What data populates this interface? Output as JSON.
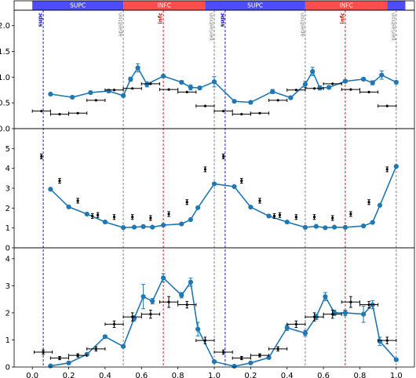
{
  "figure": {
    "x_ticks": [
      "0.0",
      "0.2",
      "0.4",
      "0.6",
      "0.8",
      "1.0",
      "0.2",
      "0.4",
      "0.6",
      "0.8",
      "1.0"
    ],
    "phase_bands": [
      {
        "label": "SUPC",
        "start": 0.0,
        "end": 0.5,
        "color": "#4d4dff"
      },
      {
        "label": "INFC",
        "start": 0.5,
        "end": 0.95,
        "color": "#ff4d4d"
      },
      {
        "label": "SUPC",
        "start": 0.95,
        "end": 1.5,
        "color": "#4d4dff"
      },
      {
        "label": "INFC",
        "start": 1.5,
        "end": 1.95,
        "color": "#ff4d4d"
      },
      {
        "label": "",
        "start": 1.95,
        "end": 2.05,
        "color": "#4d4dff"
      }
    ],
    "vertical_lines": [
      {
        "label": "supc",
        "x": 0.06,
        "color": "#0000cc",
        "text_color": "#0000cc"
      },
      {
        "label": "apastron",
        "x": 0.5,
        "color": "#777777",
        "text_color": "#777777"
      },
      {
        "label": "infc",
        "x": 0.72,
        "color": "#dd0000",
        "text_color": "#dd0000"
      },
      {
        "label": "periastron",
        "x": 1.0,
        "color": "#777777",
        "text_color": "#777777"
      },
      {
        "label": "supc",
        "x": 1.06,
        "color": "#0000cc",
        "text_color": "#0000cc"
      },
      {
        "label": "apastron",
        "x": 1.5,
        "color": "#777777",
        "text_color": "#777777"
      },
      {
        "label": "infc",
        "x": 1.72,
        "color": "#dd0000",
        "text_color": "#dd0000"
      },
      {
        "label": "periastron",
        "x": 2.0,
        "color": "#777777",
        "text_color": "#777777"
      }
    ],
    "colors": {
      "line": "#1f77b4",
      "black": "#000000"
    }
  },
  "chart_data": [
    {
      "type": "line",
      "panel": "top",
      "xlim": [
        -0.1,
        2.1
      ],
      "ylim": [
        0,
        2.3
      ],
      "y_ticks": [
        "0.0",
        "0.5",
        "1.0",
        "1.5",
        "2.0"
      ],
      "y_tick_values": [
        0,
        0.5,
        1.0,
        1.5,
        2.0
      ],
      "series": [
        {
          "style": "blue-line",
          "x": [
            0.1,
            0.22,
            0.32,
            0.42,
            0.5,
            0.54,
            0.58,
            0.63,
            0.72,
            0.82,
            0.87,
            0.92,
            1.0,
            1.11,
            1.2,
            1.32,
            1.42,
            1.5,
            1.54,
            1.58,
            1.63,
            1.72,
            1.82,
            1.87,
            1.92,
            2.0
          ],
          "y": [
            0.67,
            0.61,
            0.7,
            0.73,
            0.64,
            0.96,
            1.18,
            0.86,
            1.02,
            0.9,
            0.8,
            0.79,
            0.91,
            0.53,
            0.51,
            0.72,
            0.6,
            0.86,
            1.11,
            0.79,
            0.8,
            0.92,
            0.96,
            0.89,
            1.04,
            0.9
          ],
          "yerr": [
            0.02,
            0.02,
            0.03,
            0.03,
            0.03,
            0.04,
            0.08,
            0.05,
            0.03,
            0.03,
            0.05,
            0.03,
            0.1,
            0.02,
            0.02,
            0.04,
            0.03,
            0.06,
            0.08,
            0.04,
            0.03,
            0.03,
            0.03,
            0.04,
            0.08,
            0.03
          ]
        },
        {
          "style": "black-xerr",
          "x": [
            0.05,
            0.15,
            0.25,
            0.35,
            0.45,
            0.55,
            0.65,
            0.75,
            0.85,
            0.95,
            1.05,
            1.15,
            1.25,
            1.35,
            1.45,
            1.55,
            1.65,
            1.75,
            1.85,
            1.95
          ],
          "y": [
            0.34,
            0.28,
            0.3,
            0.55,
            0.75,
            0.78,
            0.87,
            0.76,
            0.71,
            0.44,
            0.34,
            0.28,
            0.3,
            0.55,
            0.75,
            0.78,
            0.87,
            0.76,
            0.71,
            0.44
          ],
          "xerr": [
            0.05,
            0.05,
            0.05,
            0.05,
            0.05,
            0.05,
            0.05,
            0.05,
            0.05,
            0.05,
            0.05,
            0.05,
            0.05,
            0.05,
            0.05,
            0.05,
            0.05,
            0.05,
            0.05,
            0.05
          ]
        }
      ]
    },
    {
      "type": "line",
      "panel": "middle",
      "xlim": [
        -0.1,
        2.1
      ],
      "ylim": [
        0,
        6
      ],
      "y_ticks": [
        "0",
        "1",
        "2",
        "3",
        "4",
        "5"
      ],
      "y_tick_values": [
        0,
        1,
        2,
        3,
        4,
        5
      ],
      "series": [
        {
          "style": "blue-line",
          "x": [
            0.1,
            0.2,
            0.3,
            0.4,
            0.5,
            0.56,
            0.61,
            0.66,
            0.72,
            0.82,
            0.87,
            0.91,
            1.0,
            1.11,
            1.2,
            1.3,
            1.4,
            1.5,
            1.56,
            1.61,
            1.66,
            1.72,
            1.82,
            1.87,
            1.91,
            2.0
          ],
          "y": [
            2.95,
            2.06,
            1.7,
            1.3,
            1.02,
            1.04,
            1.07,
            1.04,
            1.14,
            1.2,
            1.42,
            2.02,
            3.22,
            3.08,
            2.05,
            1.6,
            1.3,
            1.03,
            1.08,
            1.01,
            1.04,
            1.03,
            1.1,
            1.28,
            2.14,
            4.1
          ]
        },
        {
          "style": "black-yerr",
          "x": [
            0.05,
            0.15,
            0.25,
            0.33,
            0.36,
            0.45,
            0.55,
            0.65,
            0.75,
            0.85,
            0.95,
            1.05,
            1.15,
            1.25,
            1.33,
            1.36,
            1.45,
            1.55,
            1.65,
            1.75,
            1.85,
            1.95
          ],
          "y": [
            4.6,
            3.37,
            2.37,
            1.6,
            1.65,
            1.55,
            1.55,
            1.5,
            1.7,
            2.3,
            3.95,
            4.6,
            3.37,
            2.37,
            1.6,
            1.65,
            1.55,
            1.55,
            1.5,
            1.7,
            2.3,
            3.95
          ],
          "yerr": [
            0.12,
            0.12,
            0.12,
            0.12,
            0.12,
            0.12,
            0.12,
            0.12,
            0.12,
            0.12,
            0.12,
            0.12,
            0.12,
            0.12,
            0.12,
            0.12,
            0.12,
            0.12,
            0.12,
            0.12,
            0.12,
            0.12
          ]
        }
      ]
    },
    {
      "type": "line",
      "panel": "bottom",
      "xlim": [
        -0.1,
        2.1
      ],
      "ylim": [
        0,
        4.4
      ],
      "y_ticks": [
        "0",
        "1",
        "2",
        "3",
        "4"
      ],
      "y_tick_values": [
        0,
        1,
        2,
        3,
        4
      ],
      "series": [
        {
          "style": "blue-line",
          "x": [
            0.1,
            0.2,
            0.3,
            0.4,
            0.5,
            0.56,
            0.61,
            0.66,
            0.72,
            0.82,
            0.87,
            0.91,
            1.0,
            1.11,
            1.2,
            1.3,
            1.4,
            1.5,
            1.56,
            1.61,
            1.66,
            1.72,
            1.82,
            1.87,
            1.91,
            2.0
          ],
          "y": [
            0.04,
            0.15,
            0.47,
            1.12,
            0.76,
            1.8,
            2.6,
            2.43,
            3.29,
            2.65,
            3.13,
            1.4,
            0.2,
            0.03,
            0.15,
            0.35,
            1.45,
            1.25,
            1.85,
            2.6,
            2.0,
            2.0,
            1.95,
            2.3,
            0.95,
            0.27
          ],
          "yerr": [
            0.03,
            0.03,
            0.05,
            0.05,
            0.05,
            0.1,
            0.45,
            0.1,
            0.15,
            0.1,
            0.15,
            0.25,
            0.05,
            0.03,
            0.03,
            0.05,
            0.1,
            0.1,
            0.1,
            0.15,
            0.1,
            0.1,
            0.3,
            0.15,
            0.15,
            0.05
          ]
        },
        {
          "style": "black-xyerr",
          "x": [
            0.06,
            0.15,
            0.25,
            0.35,
            0.45,
            0.55,
            0.65,
            0.75,
            0.85,
            0.95,
            1.05,
            1.15,
            1.25,
            1.35,
            1.45,
            1.55,
            1.65,
            1.75,
            1.85,
            1.95
          ],
          "y": [
            0.55,
            0.33,
            0.43,
            0.67,
            1.58,
            1.85,
            1.95,
            2.4,
            2.3,
            0.98,
            0.55,
            0.33,
            0.43,
            0.67,
            1.58,
            1.85,
            1.95,
            2.4,
            2.3,
            0.98
          ],
          "xerr": [
            0.05,
            0.05,
            0.05,
            0.05,
            0.05,
            0.05,
            0.05,
            0.05,
            0.05,
            0.05,
            0.05,
            0.05,
            0.05,
            0.05,
            0.05,
            0.05,
            0.05,
            0.05,
            0.05,
            0.05
          ],
          "yerr": [
            0.08,
            0.06,
            0.06,
            0.08,
            0.12,
            0.15,
            0.15,
            0.2,
            0.12,
            0.12,
            0.08,
            0.06,
            0.06,
            0.08,
            0.12,
            0.15,
            0.15,
            0.2,
            0.12,
            0.12
          ]
        }
      ]
    }
  ]
}
